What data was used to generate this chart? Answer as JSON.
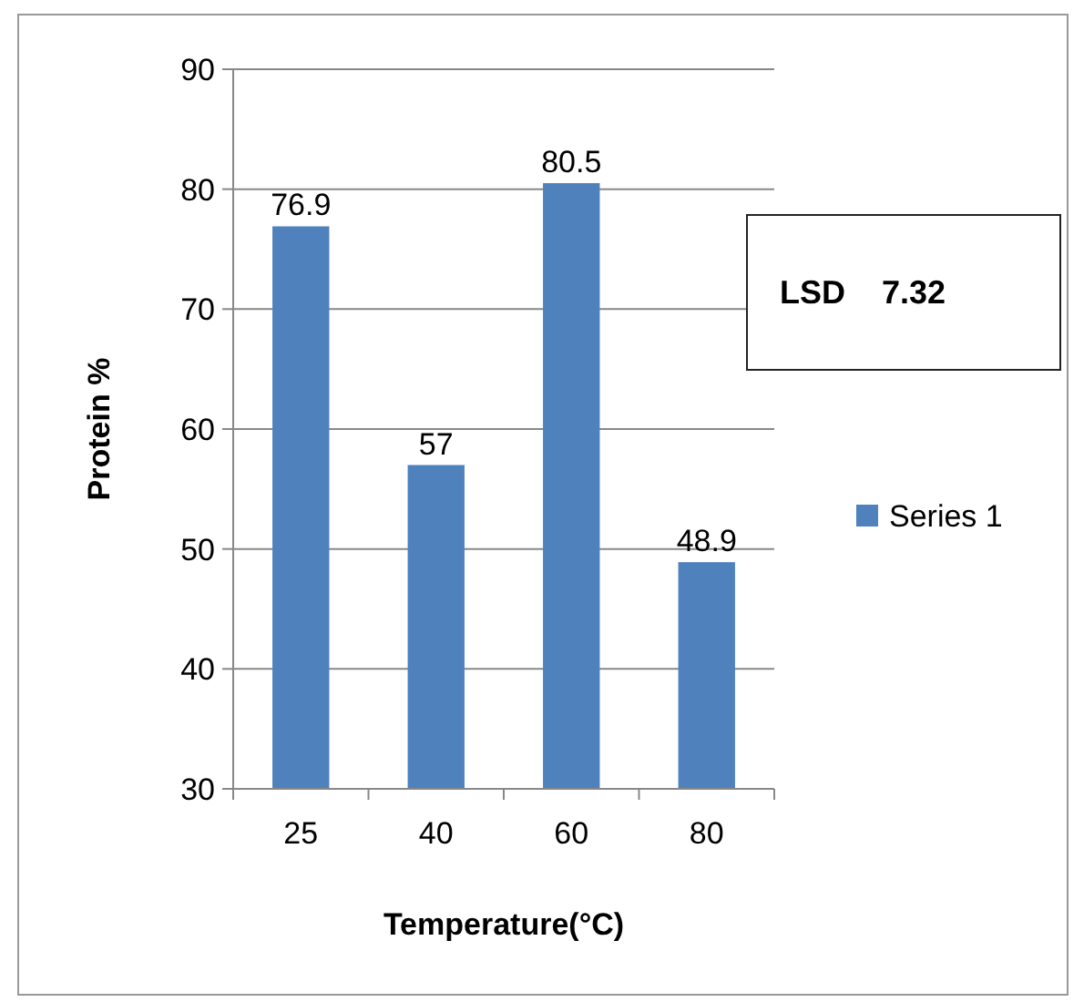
{
  "chart_data": {
    "type": "bar",
    "xlabel": "Temperature(°C)",
    "ylabel": "Protein %",
    "categories": [
      "25",
      "40",
      "60",
      "80"
    ],
    "series": [
      {
        "name": "Series 1",
        "color": "#4f81bd",
        "values": [
          76.9,
          57,
          80.5,
          48.9
        ]
      }
    ],
    "ylim": [
      30,
      90
    ],
    "yticks": [
      30,
      40,
      50,
      60,
      70,
      80,
      90
    ],
    "grid": "y",
    "legend": "right",
    "data_labels": true,
    "annotations": [
      "LSD    7.32"
    ]
  }
}
